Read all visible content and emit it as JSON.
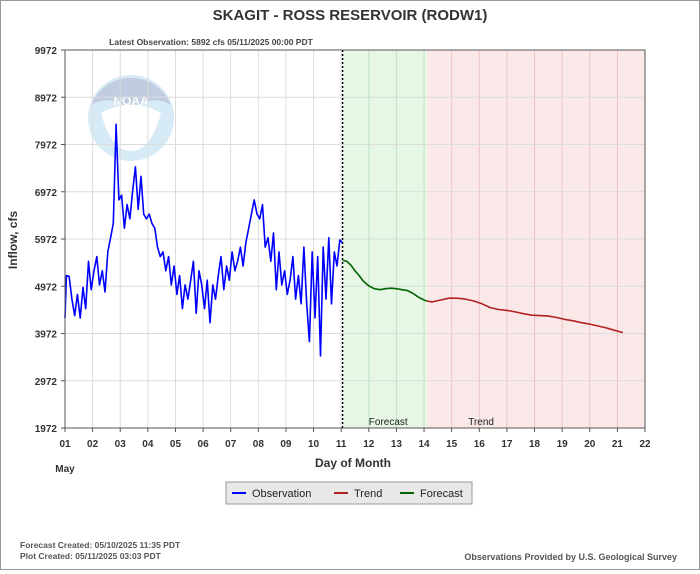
{
  "chart_data": {
    "type": "line",
    "title": "SKAGIT - ROSS RESERVOIR  (RODW1)",
    "subtitle": "Latest Observation: 5892 cfs 05/11/2025 00:00 PDT",
    "xlabel": "Day of Month",
    "xlabel_month": "May",
    "ylabel": "Inflow, cfs",
    "ylim": [
      1972,
      9972
    ],
    "xlim": [
      1,
      22
    ],
    "y_ticks": [
      "1972",
      "2972",
      "3972",
      "4972",
      "5972",
      "6972",
      "7972",
      "8972",
      "9972"
    ],
    "x_ticks": [
      "01",
      "02",
      "03",
      "04",
      "05",
      "06",
      "07",
      "08",
      "09",
      "10",
      "11",
      "12",
      "13",
      "14",
      "15",
      "16",
      "17",
      "18",
      "19",
      "20",
      "21",
      "22"
    ],
    "grid": true,
    "legend_position": "bottom-center",
    "now_x": 11.05,
    "regions": [
      {
        "label": "Forecast",
        "x_start": 11.05,
        "x_end": 14.1,
        "color": "#e6f7e6",
        "grid_color": "#bfe3bf"
      },
      {
        "label": "Trend",
        "x_start": 14.1,
        "x_end": 22,
        "color": "#fbe9e9",
        "grid_color": "#ecc4c4"
      }
    ],
    "series": [
      {
        "name": "Observation",
        "color": "#0000ff",
        "points": [
          [
            1.0,
            4300
          ],
          [
            1.05,
            5200
          ],
          [
            1.15,
            5180
          ],
          [
            1.25,
            4700
          ],
          [
            1.35,
            4350
          ],
          [
            1.45,
            4800
          ],
          [
            1.55,
            4300
          ],
          [
            1.65,
            4950
          ],
          [
            1.75,
            4500
          ],
          [
            1.85,
            5500
          ],
          [
            1.95,
            4900
          ],
          [
            2.05,
            5300
          ],
          [
            2.15,
            5600
          ],
          [
            2.25,
            5000
          ],
          [
            2.35,
            5300
          ],
          [
            2.45,
            4850
          ],
          [
            2.55,
            5700
          ],
          [
            2.65,
            6000
          ],
          [
            2.75,
            6300
          ],
          [
            2.85,
            8400
          ],
          [
            2.95,
            6800
          ],
          [
            3.05,
            6900
          ],
          [
            3.15,
            6200
          ],
          [
            3.25,
            6700
          ],
          [
            3.35,
            6400
          ],
          [
            3.45,
            7000
          ],
          [
            3.55,
            7500
          ],
          [
            3.65,
            6600
          ],
          [
            3.75,
            7300
          ],
          [
            3.85,
            6500
          ],
          [
            3.95,
            6400
          ],
          [
            4.05,
            6500
          ],
          [
            4.15,
            6300
          ],
          [
            4.25,
            6200
          ],
          [
            4.35,
            5800
          ],
          [
            4.45,
            5600
          ],
          [
            4.55,
            5700
          ],
          [
            4.65,
            5300
          ],
          [
            4.75,
            5600
          ],
          [
            4.85,
            5000
          ],
          [
            4.95,
            5400
          ],
          [
            5.05,
            4800
          ],
          [
            5.15,
            5200
          ],
          [
            5.25,
            4500
          ],
          [
            5.35,
            5000
          ],
          [
            5.45,
            4700
          ],
          [
            5.55,
            5100
          ],
          [
            5.65,
            5500
          ],
          [
            5.75,
            4400
          ],
          [
            5.85,
            5300
          ],
          [
            5.95,
            5000
          ],
          [
            6.05,
            4500
          ],
          [
            6.15,
            5100
          ],
          [
            6.25,
            4200
          ],
          [
            6.35,
            5000
          ],
          [
            6.45,
            4700
          ],
          [
            6.55,
            5200
          ],
          [
            6.65,
            5600
          ],
          [
            6.75,
            4900
          ],
          [
            6.85,
            5400
          ],
          [
            6.95,
            5100
          ],
          [
            7.05,
            5700
          ],
          [
            7.15,
            5300
          ],
          [
            7.25,
            5500
          ],
          [
            7.35,
            5800
          ],
          [
            7.45,
            5400
          ],
          [
            7.55,
            5900
          ],
          [
            7.65,
            6200
          ],
          [
            7.75,
            6500
          ],
          [
            7.85,
            6800
          ],
          [
            7.95,
            6500
          ],
          [
            8.05,
            6400
          ],
          [
            8.15,
            6700
          ],
          [
            8.25,
            5800
          ],
          [
            8.35,
            6000
          ],
          [
            8.45,
            5500
          ],
          [
            8.55,
            6100
          ],
          [
            8.65,
            4900
          ],
          [
            8.75,
            5700
          ],
          [
            8.85,
            5000
          ],
          [
            8.95,
            5300
          ],
          [
            9.05,
            4800
          ],
          [
            9.15,
            5100
          ],
          [
            9.25,
            5600
          ],
          [
            9.35,
            4700
          ],
          [
            9.45,
            5200
          ],
          [
            9.55,
            4600
          ],
          [
            9.65,
            5800
          ],
          [
            9.75,
            4600
          ],
          [
            9.85,
            3800
          ],
          [
            9.95,
            5700
          ],
          [
            10.05,
            4300
          ],
          [
            10.15,
            5600
          ],
          [
            10.25,
            3500
          ],
          [
            10.35,
            5800
          ],
          [
            10.45,
            4700
          ],
          [
            10.55,
            6000
          ],
          [
            10.65,
            4600
          ],
          [
            10.75,
            5700
          ],
          [
            10.85,
            5400
          ],
          [
            10.95,
            5950
          ],
          [
            11.05,
            5892
          ]
        ]
      },
      {
        "name": "Forecast",
        "color": "#006400",
        "points": [
          [
            11.05,
            5520
          ],
          [
            11.2,
            5500
          ],
          [
            11.35,
            5420
          ],
          [
            11.5,
            5300
          ],
          [
            11.65,
            5200
          ],
          [
            11.8,
            5080
          ],
          [
            12.0,
            4980
          ],
          [
            12.2,
            4920
          ],
          [
            12.4,
            4900
          ],
          [
            12.6,
            4920
          ],
          [
            12.8,
            4930
          ],
          [
            13.0,
            4920
          ],
          [
            13.2,
            4900
          ],
          [
            13.4,
            4880
          ],
          [
            13.6,
            4820
          ],
          [
            13.8,
            4740
          ],
          [
            14.0,
            4680
          ],
          [
            14.1,
            4660
          ]
        ]
      },
      {
        "name": "Trend",
        "color": "#b22222",
        "points": [
          [
            14.1,
            4660
          ],
          [
            14.3,
            4640
          ],
          [
            14.6,
            4680
          ],
          [
            14.9,
            4720
          ],
          [
            15.2,
            4720
          ],
          [
            15.5,
            4700
          ],
          [
            15.8,
            4660
          ],
          [
            16.1,
            4600
          ],
          [
            16.4,
            4520
          ],
          [
            16.7,
            4480
          ],
          [
            17.0,
            4460
          ],
          [
            17.3,
            4430
          ],
          [
            17.6,
            4390
          ],
          [
            17.9,
            4360
          ],
          [
            18.2,
            4350
          ],
          [
            18.5,
            4340
          ],
          [
            18.8,
            4310
          ],
          [
            19.1,
            4270
          ],
          [
            19.4,
            4240
          ],
          [
            19.7,
            4200
          ],
          [
            20.0,
            4170
          ],
          [
            20.3,
            4130
          ],
          [
            20.6,
            4090
          ],
          [
            20.9,
            4040
          ],
          [
            21.2,
            3990
          ]
        ]
      }
    ],
    "legend": [
      "Observation",
      "Trend",
      "Forecast"
    ]
  },
  "footer": {
    "forecast_created": "Forecast Created: 05/10/2025 11:35 PDT",
    "plot_created": "Plot Created: 05/11/2025 03:03 PDT",
    "credit": "Observations Provided by U.S. Geological Survey"
  },
  "logo": {
    "text": "NOAA",
    "icon": "noaa-logo-icon"
  }
}
